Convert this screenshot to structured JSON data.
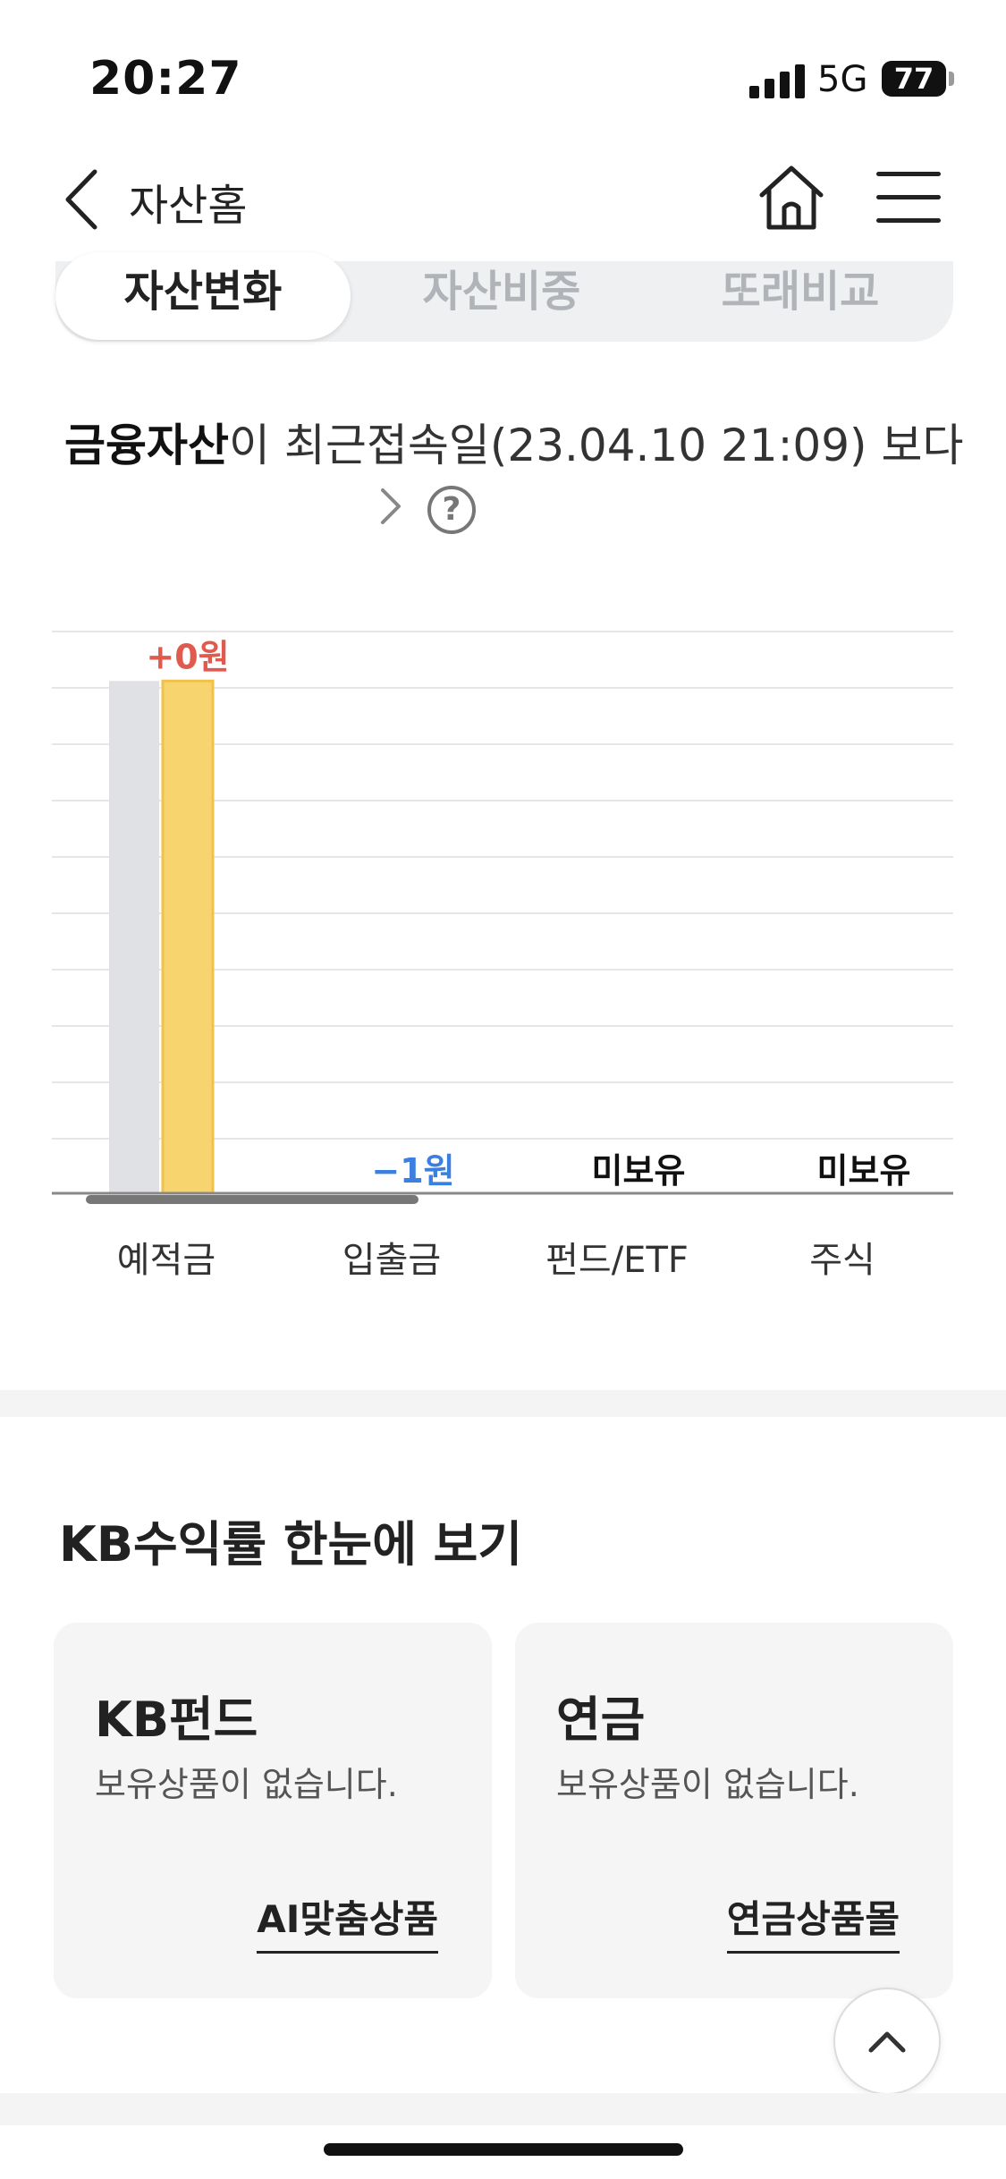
{
  "status_bar": {
    "time": "20:27",
    "network": "5G",
    "battery": "77"
  },
  "header": {
    "title": "자산홈"
  },
  "tabs": [
    {
      "label": "자산변화",
      "active": true
    },
    {
      "label": "자산비중",
      "active": false
    },
    {
      "label": "또래비교",
      "active": false
    }
  ],
  "headline": {
    "bold": "금융자산",
    "text": "이 최근접속일(23.04.10 21:09) 보다"
  },
  "chart_data": {
    "type": "bar",
    "categories": [
      "예적금",
      "입출금",
      "펀드/ETF",
      "주식"
    ],
    "series": [
      {
        "values": [
          1,
          null,
          null,
          null
        ],
        "color": "#dfe1e4"
      },
      {
        "values": [
          1,
          null,
          null,
          null
        ],
        "color": "#f8d46f"
      }
    ],
    "value_labels": [
      "+0원",
      "−1원",
      "미보유",
      "미보유"
    ],
    "value_label_colors": [
      "#e05a4e",
      "#3b7fe0",
      "#111111",
      "#111111"
    ],
    "grid": true,
    "ylim": [
      0,
      1.1
    ]
  },
  "kb_section": {
    "title": "KB수익률 한눈에 보기",
    "cards": [
      {
        "title": "KB펀드",
        "desc": "보유상품이 없습니다.",
        "link": "AI맞춤상품"
      },
      {
        "title": "연금",
        "desc": "보유상품이 없습니다.",
        "link": "연금상품몰"
      }
    ]
  }
}
